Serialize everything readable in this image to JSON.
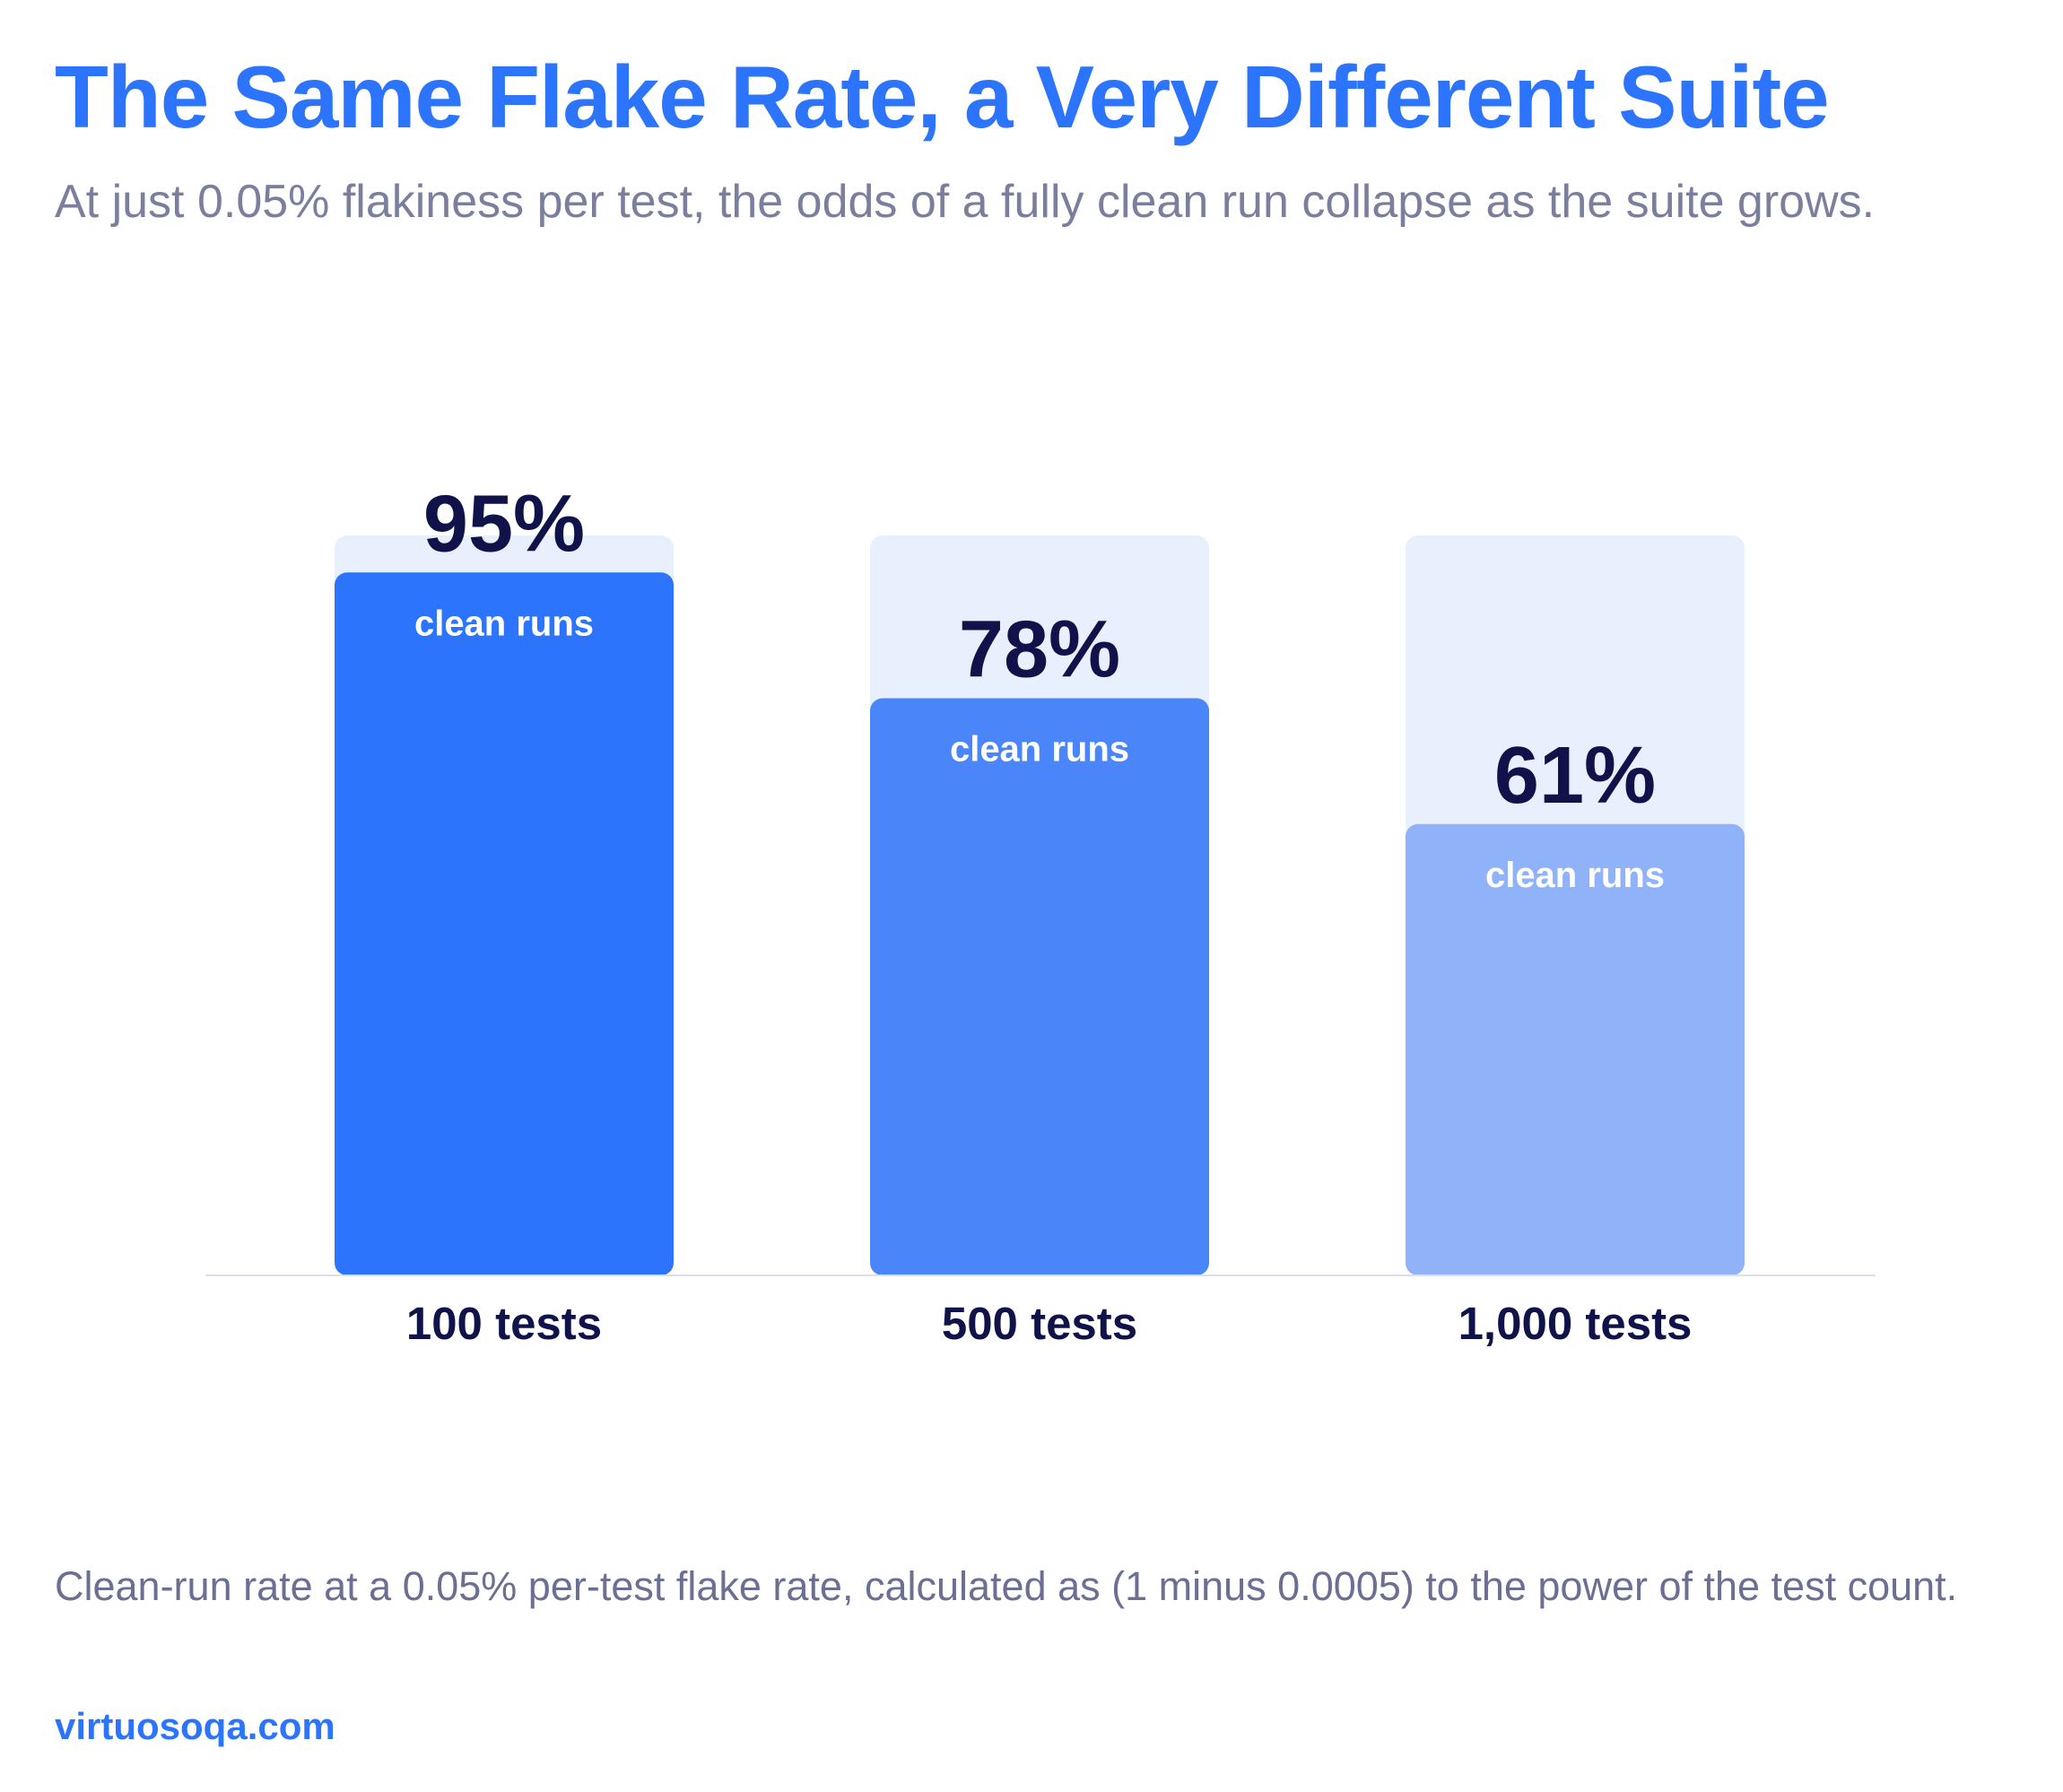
{
  "title": "The Same Flake Rate, a Very Different Suite",
  "subtitle": "At just 0.05% flakiness per test, the odds of a fully clean run collapse as the suite grows.",
  "footnote": "Clean-run rate at a 0.05% per-test flake rate, calculated as (1 minus 0.0005) to the power of the test count.",
  "source": "virtuosoqa.com",
  "colors": {
    "title": "#2b74fb",
    "subtitle": "#7b7f9e",
    "footnote": "#6a6f93",
    "source": "#2b74fb",
    "track": "#e8f0fd",
    "value_label": "#10134a",
    "inner_label": "#ffffff",
    "category_label": "#10134a",
    "baseline": "#dcdfe8",
    "bar_colors": [
      "#2b74fb",
      "#4a85fa",
      "#8fb2f9"
    ]
  },
  "chart_data": {
    "type": "bar",
    "categories": [
      "100 tests",
      "500 tests",
      "1,000 tests"
    ],
    "values": [
      95,
      78,
      61
    ],
    "value_labels": [
      "95%",
      "78%",
      "61%"
    ],
    "bar_label": "clean runs",
    "ylim": [
      0,
      100
    ],
    "grid": false,
    "legend": "none"
  }
}
